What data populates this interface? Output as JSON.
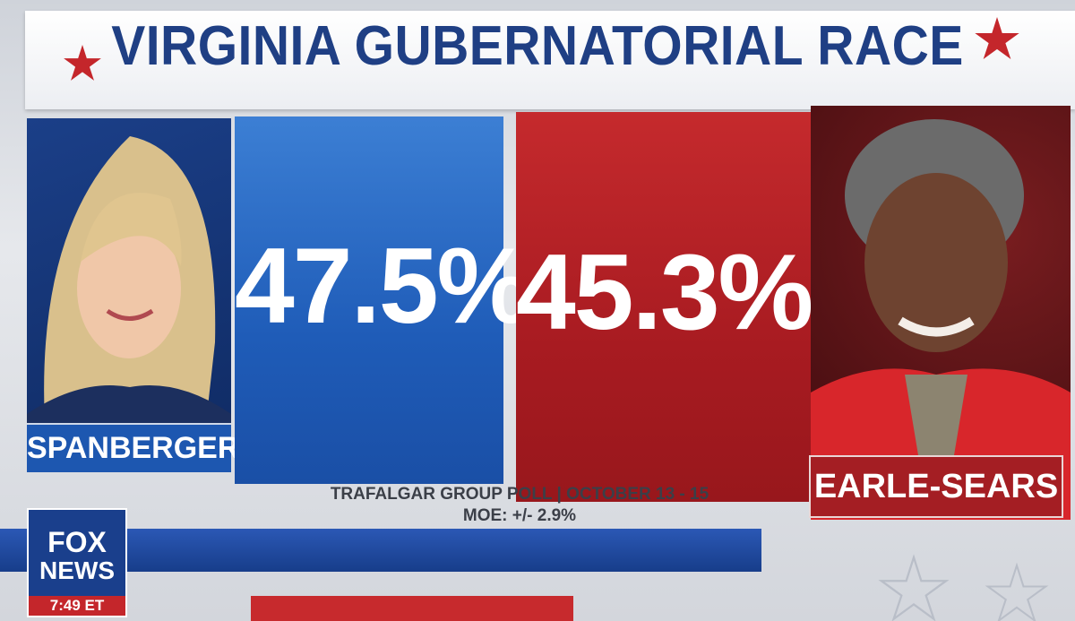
{
  "title": "VIRGINIA GUBERNATORIAL RACE",
  "candidates": [
    {
      "name": "SPANBERGER",
      "result": "47.5%"
    },
    {
      "name": "EARLE-SEARS",
      "result": "45.3%"
    }
  ],
  "source": {
    "poll": "TRAFALGAR GROUP POLL | OCTOBER 13 - 15",
    "moe": "MOE: +/- 2.9%"
  },
  "logo": {
    "line1": "FOX",
    "line2": "NEWS",
    "time": "7:49 ET"
  }
}
